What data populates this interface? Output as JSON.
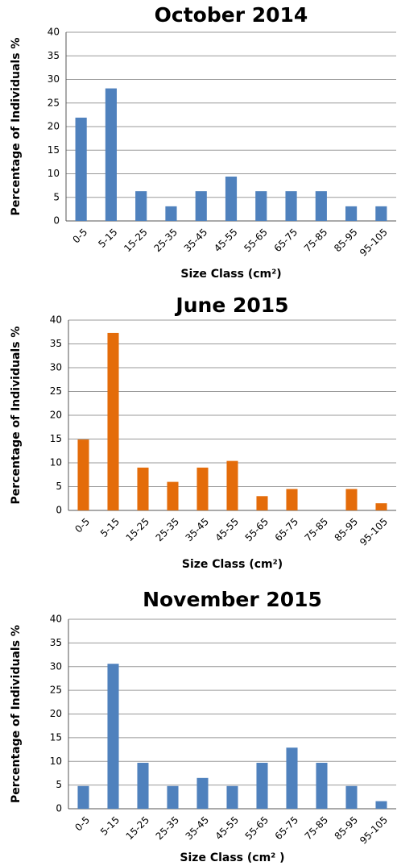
{
  "chart_data": [
    {
      "type": "bar",
      "title": "October 2014",
      "categories": [
        "0-5",
        "5-15",
        "15-25",
        "25-35",
        "35-45",
        "45-55",
        "55-65",
        "65-75",
        "75-85",
        "85-95",
        "95-105"
      ],
      "values": [
        21.9,
        28.1,
        6.3,
        3.1,
        6.3,
        9.4,
        6.3,
        6.3,
        6.3,
        3.1,
        3.1
      ],
      "color": "#4f81bd",
      "ylim": [
        0,
        40
      ],
      "yticks": [
        0,
        5,
        10,
        15,
        20,
        25,
        30,
        35,
        40
      ],
      "grid": true,
      "x_label": "Size Class (cm²)",
      "y_label": "Percentage of Individuals %"
    },
    {
      "type": "bar",
      "title": "June 2015",
      "categories": [
        "0-5",
        "5-15",
        "15-25",
        "25-35",
        "35-45",
        "45-55",
        "55-65",
        "65-75",
        "75-85",
        "85-95",
        "95-105"
      ],
      "values": [
        14.9,
        37.3,
        9.0,
        6.0,
        9.0,
        10.4,
        3.0,
        4.5,
        0,
        4.5,
        1.5
      ],
      "color": "#e46c0a",
      "ylim": [
        0,
        40
      ],
      "yticks": [
        0,
        5,
        10,
        15,
        20,
        25,
        30,
        35,
        40
      ],
      "grid": true,
      "x_label": "Size Class (cm²)",
      "y_label": "Percentage of Individuals %"
    },
    {
      "type": "bar",
      "title": "November 2015",
      "categories": [
        "0-5",
        "5-15",
        "15-25",
        "25-35",
        "35-45",
        "45-55",
        "55-65",
        "65-75",
        "75-85",
        "85-95",
        "95-105"
      ],
      "values": [
        4.8,
        30.6,
        9.7,
        4.8,
        6.5,
        4.8,
        9.7,
        12.9,
        9.7,
        4.8,
        1.6
      ],
      "color": "#4f81bd",
      "ylim": [
        0,
        40
      ],
      "yticks": [
        0,
        5,
        10,
        15,
        20,
        25,
        30,
        35,
        40
      ],
      "grid": true,
      "x_label": "Size Class (cm² )",
      "y_label": "Percentage of Individuals %"
    }
  ]
}
